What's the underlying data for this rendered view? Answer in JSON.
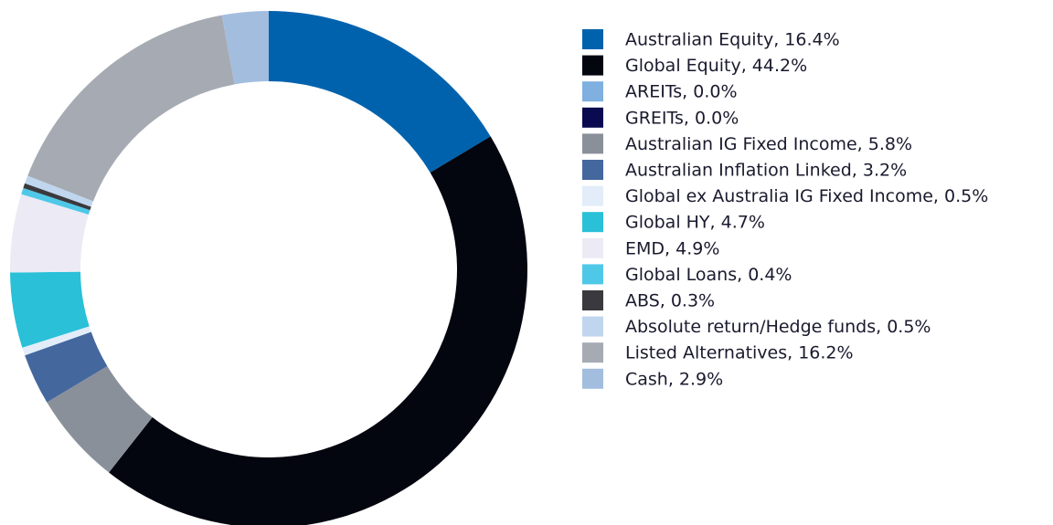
{
  "chart_data": {
    "type": "donut",
    "categories": [
      "Australian Equity, 16.4%",
      "Global Equity, 44.2%",
      "AREITs, 0.0%",
      "GREITs, 0.0%",
      "Australian IG Fixed Income, 5.8%",
      "Australian Inflation Linked, 3.2%",
      "Global ex Australia IG Fixed Income, 0.5%",
      "Global HY, 4.7%",
      "EMD, 4.9%",
      "Global Loans, 0.4%",
      "ABS, 0.3%",
      "Absolute return/Hedge funds, 0.5%",
      "Listed Alternatives, 16.2%",
      "Cash, 2.9%"
    ],
    "values": [
      16.4,
      44.2,
      0.0,
      0.0,
      5.8,
      3.2,
      0.5,
      4.7,
      4.9,
      0.4,
      0.3,
      0.5,
      16.2,
      2.9
    ],
    "colors": [
      "#0062ad",
      "#03050f",
      "#7fb0e0",
      "#0a0a50",
      "#8a9099",
      "#44679e",
      "#e2edf9",
      "#29c0d8",
      "#eceaf4",
      "#4fc8e8",
      "#3a3a3e",
      "#c0d6ef",
      "#a6abb3",
      "#a3bddf"
    ],
    "legend": "right"
  }
}
